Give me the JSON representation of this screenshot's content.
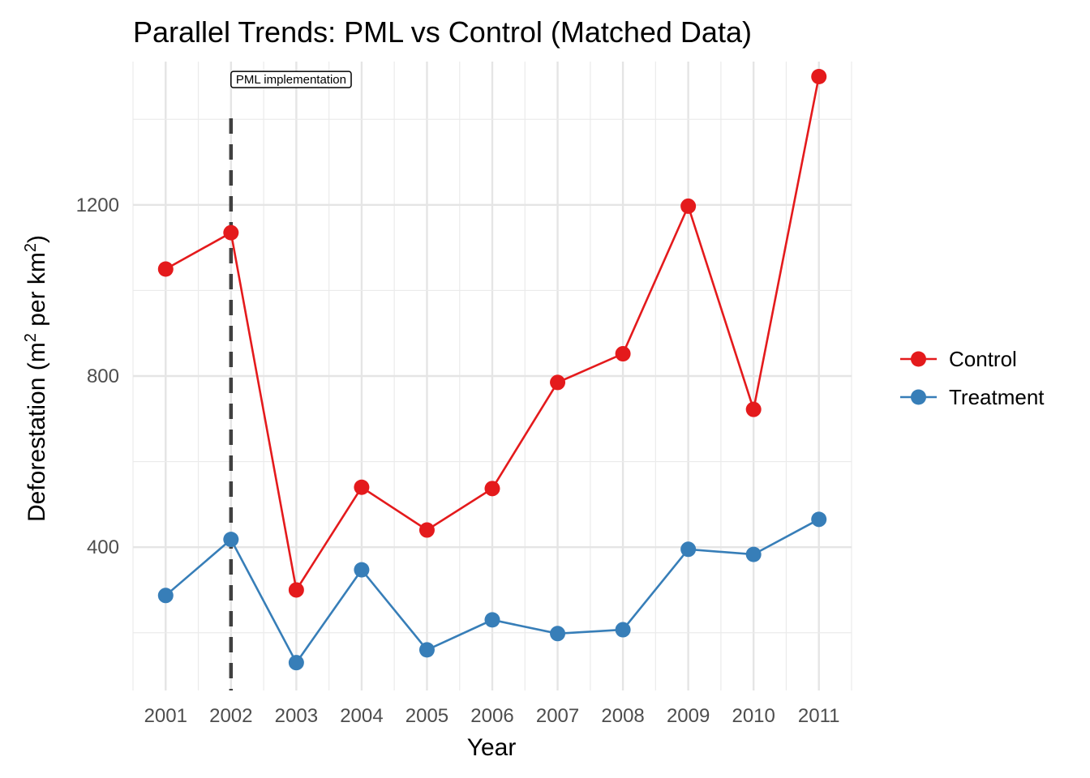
{
  "chart_data": {
    "type": "line",
    "title": "Parallel Trends: PML vs Control (Matched Data)",
    "xlabel": "Year",
    "ylabel": {
      "prefix": "Deforestation (m",
      "sup1": "2",
      "middle": " per km",
      "sup2": "2",
      "suffix": ")"
    },
    "categories": [
      "2001",
      "2002",
      "2003",
      "2004",
      "2005",
      "2006",
      "2007",
      "2008",
      "2009",
      "2010",
      "2011"
    ],
    "x": [
      2001,
      2002,
      2003,
      2004,
      2005,
      2006,
      2007,
      2008,
      2009,
      2010,
      2011
    ],
    "xlim": [
      2000.5,
      2011.5
    ],
    "ylim": [
      65,
      1535
    ],
    "yticks": [
      400,
      800,
      1200
    ],
    "ytick_labels": [
      "400",
      "800",
      "1200"
    ],
    "series": [
      {
        "name": "Control",
        "color": "#E41A1C",
        "values": [
          1050,
          1135,
          300,
          540,
          440,
          537,
          785,
          852,
          1197,
          722,
          1500
        ]
      },
      {
        "name": "Treatment",
        "color": "#377EB8",
        "values": [
          287,
          418,
          130,
          347,
          160,
          230,
          198,
          207,
          395,
          383,
          465
        ]
      }
    ],
    "vline": {
      "x": 2002,
      "style": "dashed",
      "color": "#404040"
    },
    "annotation": {
      "x": 2002,
      "y": 1495,
      "text": "PML implementation"
    },
    "legend_position": "right",
    "grid": true
  }
}
